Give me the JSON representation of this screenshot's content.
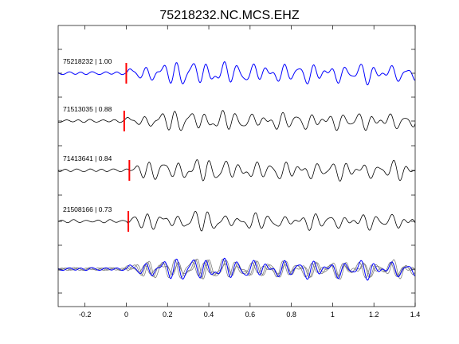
{
  "chart_data": {
    "type": "line",
    "title": "75218232.NC.MCS.EHZ",
    "xlabel": "",
    "ylabel": "",
    "xlim": [
      -0.33,
      1.4
    ],
    "x_ticks": [
      -0.2,
      0,
      0.2,
      0.4,
      0.6,
      0.8,
      1,
      1.2,
      1.4
    ],
    "x_tick_labels": [
      "-0.2",
      "0",
      "0.2",
      "0.4",
      "0.6",
      "0.8",
      "1",
      "1.2",
      "1.4"
    ],
    "grid": false,
    "legend": "none",
    "colors": {
      "reference": "#0000ff",
      "trace": "#000000",
      "overlay": "#7f7f7f",
      "pick": "#ff0000"
    },
    "traces": [
      {
        "label": "75218232 | 1.00",
        "event_id": "75218232",
        "correlation": 1.0,
        "pick_time": 0.0,
        "color": "#0000ff"
      },
      {
        "label": "71513035 | 0.88",
        "event_id": "71513035",
        "correlation": 0.88,
        "pick_time": -0.01,
        "color": "#000000"
      },
      {
        "label": "71413641 | 0.84",
        "event_id": "71413641",
        "correlation": 0.84,
        "pick_time": 0.015,
        "color": "#000000"
      },
      {
        "label": "21508166 | 0.73",
        "event_id": "21508166",
        "correlation": 0.73,
        "pick_time": 0.01,
        "color": "#000000"
      }
    ],
    "stack": {
      "traces": [
        "75218232",
        "71513035",
        "71413641",
        "21508166"
      ]
    }
  }
}
